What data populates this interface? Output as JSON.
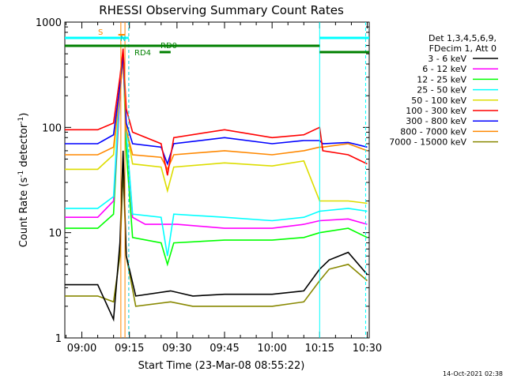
{
  "chart_data": {
    "type": "line",
    "title": "RHESSI Observing Summary Count Rates",
    "xlabel": "Start Time (23-Mar-08 08:55:22)",
    "ylabel_main": "Count Rate (s",
    "ylabel_sup1": "-1",
    "ylabel_mid": " detector",
    "ylabel_sup2": "-1",
    "ylabel_end": ")",
    "y_scale": "log",
    "ylim": [
      1,
      1000
    ],
    "xlim_minutes": [
      -5.37,
      90.63
    ],
    "x_ticks": [
      {
        "label": "09:00",
        "minute": 0
      },
      {
        "label": "09:15",
        "minute": 15
      },
      {
        "label": "09:30",
        "minute": 30
      },
      {
        "label": "09:45",
        "minute": 45
      },
      {
        "label": "10:00",
        "minute": 60
      },
      {
        "label": "10:15",
        "minute": 75
      },
      {
        "label": "10:30",
        "minute": 90
      }
    ],
    "y_ticks": [
      {
        "label": "1",
        "value": 1
      },
      {
        "label": "10",
        "value": 10
      },
      {
        "label": "100",
        "value": 100
      },
      {
        "label": "1000",
        "value": 1000
      }
    ],
    "legend": {
      "header1": "Det 1,3,4,5,6,9,",
      "header2": "FDecim 1, Att 0",
      "placement": "right"
    },
    "series": [
      {
        "name": "3 - 6 keV",
        "color": "#000000",
        "points": [
          [
            -5.37,
            3.2
          ],
          [
            5,
            3.2
          ],
          [
            10,
            1.5
          ],
          [
            12,
            8
          ],
          [
            13,
            60
          ],
          [
            14,
            6
          ],
          [
            17,
            2.5
          ],
          [
            28,
            2.8
          ],
          [
            35,
            2.5
          ],
          [
            45,
            2.6
          ],
          [
            60,
            2.6
          ],
          [
            70,
            2.8
          ],
          [
            75,
            4.5
          ],
          [
            78,
            5.5
          ],
          [
            84,
            6.5
          ],
          [
            90,
            4
          ]
        ]
      },
      {
        "name": "6 - 12 keV",
        "color": "#ff00ff",
        "points": [
          [
            -5.37,
            14
          ],
          [
            5,
            14
          ],
          [
            10,
            20
          ],
          [
            12,
            200
          ],
          [
            13,
            500
          ],
          [
            14,
            90
          ],
          [
            16,
            14
          ],
          [
            20,
            12
          ],
          [
            30,
            12
          ],
          [
            45,
            11
          ],
          [
            60,
            11
          ],
          [
            70,
            12
          ],
          [
            75,
            13
          ],
          [
            84,
            13.5
          ],
          [
            90,
            12
          ]
        ]
      },
      {
        "name": "12 - 25 keV",
        "color": "#00ff00",
        "points": [
          [
            -5.37,
            11
          ],
          [
            5,
            11
          ],
          [
            10,
            15
          ],
          [
            12,
            200
          ],
          [
            13,
            500
          ],
          [
            14,
            60
          ],
          [
            16,
            9
          ],
          [
            25,
            8
          ],
          [
            27,
            5
          ],
          [
            29,
            8
          ],
          [
            45,
            8.5
          ],
          [
            60,
            8.5
          ],
          [
            70,
            9
          ],
          [
            75,
            10
          ],
          [
            84,
            11
          ],
          [
            90,
            9
          ]
        ]
      },
      {
        "name": "25 - 50 keV",
        "color": "#00ffff",
        "points": [
          [
            -5.37,
            17
          ],
          [
            5,
            17
          ],
          [
            10,
            22
          ],
          [
            12,
            250
          ],
          [
            13,
            500
          ],
          [
            14,
            90
          ],
          [
            16,
            15
          ],
          [
            25,
            14
          ],
          [
            27,
            6
          ],
          [
            29,
            15
          ],
          [
            45,
            14
          ],
          [
            60,
            13
          ],
          [
            70,
            14
          ],
          [
            75,
            16
          ],
          [
            84,
            17
          ],
          [
            90,
            16
          ]
        ]
      },
      {
        "name": "50 - 100 keV",
        "color": "#dddd00",
        "points": [
          [
            -5.37,
            40
          ],
          [
            5,
            40
          ],
          [
            10,
            55
          ],
          [
            12,
            250
          ],
          [
            13,
            500
          ],
          [
            14,
            100
          ],
          [
            16,
            45
          ],
          [
            25,
            42
          ],
          [
            27,
            25
          ],
          [
            29,
            42
          ],
          [
            45,
            46
          ],
          [
            60,
            43
          ],
          [
            70,
            48
          ],
          [
            75,
            20
          ],
          [
            84,
            20
          ],
          [
            90,
            19
          ]
        ]
      },
      {
        "name": "100 - 300 keV",
        "color": "#ff0000",
        "points": [
          [
            -5.37,
            95
          ],
          [
            5,
            95
          ],
          [
            10,
            110
          ],
          [
            12,
            300
          ],
          [
            13,
            560
          ],
          [
            14,
            150
          ],
          [
            16,
            90
          ],
          [
            25,
            70
          ],
          [
            27,
            35
          ],
          [
            29,
            80
          ],
          [
            45,
            95
          ],
          [
            60,
            80
          ],
          [
            70,
            85
          ],
          [
            75,
            100
          ],
          [
            76,
            60
          ],
          [
            84,
            55
          ],
          [
            90,
            45
          ]
        ]
      },
      {
        "name": "300 - 800 keV",
        "color": "#0000ff",
        "points": [
          [
            -5.37,
            70
          ],
          [
            5,
            70
          ],
          [
            10,
            85
          ],
          [
            12,
            250
          ],
          [
            13,
            500
          ],
          [
            14,
            110
          ],
          [
            16,
            70
          ],
          [
            25,
            65
          ],
          [
            27,
            45
          ],
          [
            29,
            70
          ],
          [
            45,
            80
          ],
          [
            60,
            70
          ],
          [
            70,
            75
          ],
          [
            75,
            75
          ],
          [
            76,
            70
          ],
          [
            84,
            72
          ],
          [
            90,
            65
          ]
        ]
      },
      {
        "name": "800 - 7000 keV",
        "color": "#ff8800",
        "points": [
          [
            -5.37,
            55
          ],
          [
            5,
            55
          ],
          [
            10,
            65
          ],
          [
            12,
            220
          ],
          [
            13,
            450
          ],
          [
            14,
            95
          ],
          [
            16,
            55
          ],
          [
            25,
            52
          ],
          [
            27,
            40
          ],
          [
            29,
            55
          ],
          [
            45,
            60
          ],
          [
            60,
            55
          ],
          [
            70,
            60
          ],
          [
            75,
            65
          ],
          [
            76,
            65
          ],
          [
            84,
            70
          ],
          [
            90,
            60
          ]
        ]
      },
      {
        "name": "7000 - 15000 keV",
        "color": "#888800",
        "points": [
          [
            -5.37,
            2.5
          ],
          [
            5,
            2.5
          ],
          [
            10,
            2.2
          ],
          [
            12,
            6
          ],
          [
            13,
            40
          ],
          [
            14,
            6
          ],
          [
            17,
            2
          ],
          [
            28,
            2.2
          ],
          [
            35,
            2
          ],
          [
            45,
            2
          ],
          [
            60,
            2
          ],
          [
            70,
            2.2
          ],
          [
            75,
            3.5
          ],
          [
            78,
            4.5
          ],
          [
            84,
            5
          ],
          [
            90,
            3.5
          ]
        ]
      }
    ],
    "annotations": {
      "rd0_label": "RD0",
      "rd4_label": "RD4",
      "s_label": "S",
      "n_label": "N"
    }
  },
  "footer": {
    "timestamp": "14-Oct-2021 02:38"
  }
}
